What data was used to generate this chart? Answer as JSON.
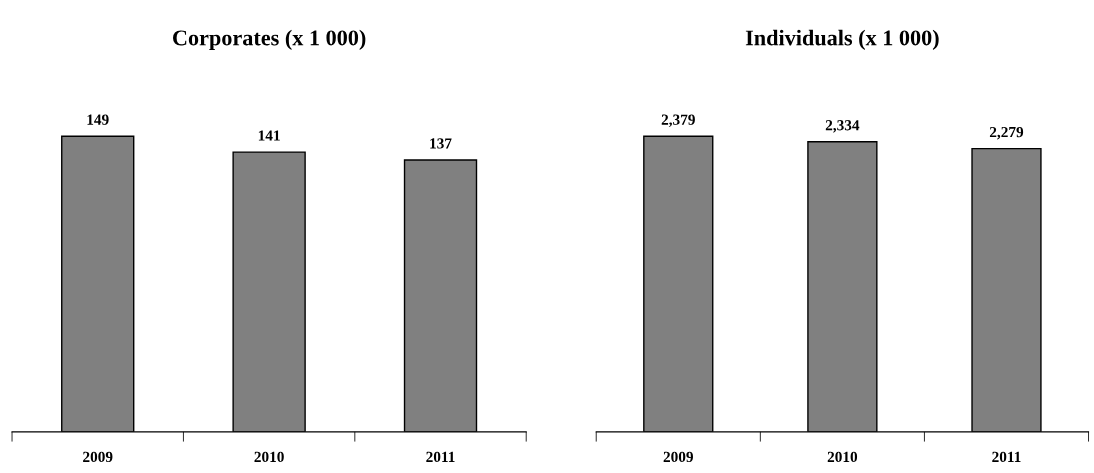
{
  "chart_data": [
    {
      "type": "bar",
      "title": "Corporates (x 1 000)",
      "categories": [
        "2009",
        "2010",
        "2011"
      ],
      "values": [
        149,
        141,
        137
      ],
      "color": "#808080",
      "tick_labels": "x",
      "data_labels": true,
      "grid": false,
      "legend": false
    },
    {
      "type": "bar",
      "title": "Individuals (x 1 000)",
      "categories": [
        "2009",
        "2010",
        "2011"
      ],
      "values": [
        2379,
        2334,
        2279
      ],
      "value_labels": [
        "2,379",
        "2,334",
        "2,279"
      ],
      "color": "#808080",
      "tick_labels": "x",
      "grid": false,
      "legend": false
    }
  ]
}
